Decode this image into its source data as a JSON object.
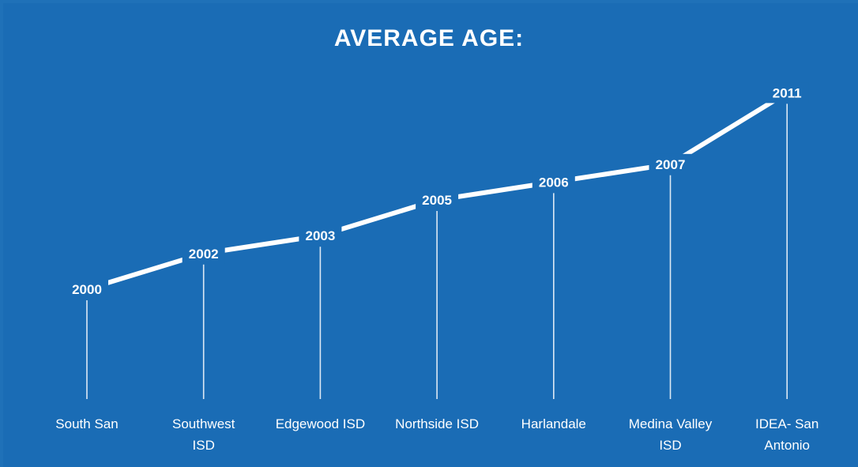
{
  "chart_data": {
    "type": "line",
    "title": "AVERAGE AGE:",
    "categories": [
      [
        "South San"
      ],
      [
        "Southwest",
        "ISD"
      ],
      [
        "Edgewood ISD"
      ],
      [
        "Northside ISD"
      ],
      [
        "Harlandale"
      ],
      [
        "Medina Valley",
        "ISD"
      ],
      [
        "IDEA- San",
        "Antonio"
      ]
    ],
    "values": [
      2000,
      2002,
      2003,
      2005,
      2006,
      2007,
      2011
    ],
    "data_labels": [
      "2000",
      "2002",
      "2003",
      "2005",
      "2006",
      "2007",
      "2011"
    ],
    "xlabel": "",
    "ylabel": "",
    "ylim": [
      1990,
      2015
    ],
    "legend": "none",
    "grid": false,
    "drop_lines": true
  },
  "colors": {
    "background": "#1a6cb5",
    "line": "#ffffff",
    "text": "#ffffff"
  }
}
